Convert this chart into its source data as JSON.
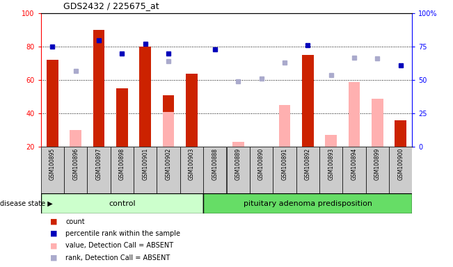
{
  "title": "GDS2432 / 225675_at",
  "samples": [
    "GSM100895",
    "GSM100896",
    "GSM100897",
    "GSM100898",
    "GSM100901",
    "GSM100902",
    "GSM100903",
    "GSM100888",
    "GSM100889",
    "GSM100890",
    "GSM100891",
    "GSM100892",
    "GSM100893",
    "GSM100894",
    "GSM100899",
    "GSM100900"
  ],
  "count_values": [
    72,
    null,
    90,
    55,
    80,
    51,
    64,
    null,
    null,
    null,
    null,
    75,
    null,
    null,
    null,
    36
  ],
  "count_absent_values": [
    null,
    30,
    null,
    null,
    null,
    41,
    null,
    null,
    23,
    null,
    45,
    null,
    27,
    59,
    49,
    null
  ],
  "percentile_rank": [
    75,
    null,
    80,
    70,
    77,
    70,
    null,
    73,
    null,
    null,
    null,
    76,
    null,
    null,
    null,
    61
  ],
  "rank_absent": [
    null,
    57,
    null,
    null,
    null,
    64,
    null,
    null,
    49,
    51,
    63,
    null,
    54,
    67,
    66,
    null
  ],
  "control_count": 7,
  "disease_count": 9,
  "ylim_left": [
    20,
    100
  ],
  "ylim_right": [
    0,
    100
  ],
  "yticks_left": [
    20,
    40,
    60,
    80,
    100
  ],
  "ytick_labels_left": [
    "20",
    "40",
    "60",
    "80",
    "100"
  ],
  "yticks_right": [
    0,
    25,
    50,
    75,
    100
  ],
  "ytick_labels_right": [
    "0",
    "25",
    "50",
    "75",
    "100%"
  ],
  "bar_color_red": "#cc2200",
  "bar_color_pink": "#ffb0b0",
  "dot_color_blue": "#0000bb",
  "dot_color_lightblue": "#aaaacc",
  "control_bg": "#ccffcc",
  "disease_bg": "#66dd66",
  "label_bg": "#cccccc",
  "legend_items": [
    "count",
    "percentile rank within the sample",
    "value, Detection Call = ABSENT",
    "rank, Detection Call = ABSENT"
  ]
}
